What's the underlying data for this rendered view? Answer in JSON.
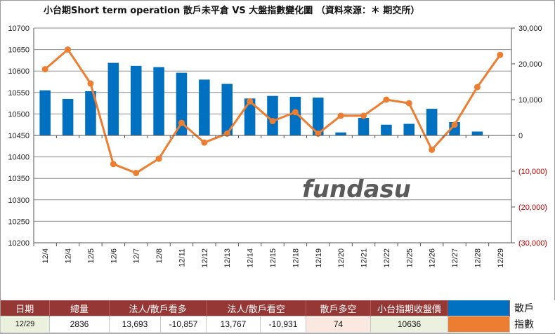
{
  "title": "小台期Short term operation  散戶未平倉 VS 大盤指數變化圖  （資料來源：＊ 期交所）",
  "watermark": "fundasu",
  "colors": {
    "bar": "#0070c0",
    "line": "#ed7d31",
    "negative_tick": "#c00000",
    "header_bg": "#953735"
  },
  "chart_data": {
    "type": "bar",
    "categories": [
      "12/4",
      "12/4",
      "12/5",
      "12/6",
      "12/7",
      "12/8",
      "12/11",
      "12/12",
      "12/13",
      "12/14",
      "12/15",
      "12/18",
      "12/19",
      "12/20",
      "12/21",
      "12/22",
      "12/25",
      "12/26",
      "12/27",
      "12/28",
      "12/29"
    ],
    "series": [
      {
        "name": "散戶",
        "type": "bar",
        "axis": "left",
        "values": [
          10555,
          10535,
          10553,
          10619,
          10612,
          10609,
          10596,
          10580,
          10570,
          10536,
          10542,
          10540,
          10538,
          10457,
          10491,
          10475,
          10477,
          10512,
          10481,
          10459,
          10449
        ]
      },
      {
        "name": "指數",
        "type": "line",
        "axis": "right",
        "values": [
          18500,
          24000,
          14500,
          -8000,
          -10500,
          -6500,
          3500,
          -2000,
          500,
          9500,
          4000,
          6500,
          500,
          5500,
          5500,
          10000,
          9000,
          -4000,
          3000,
          13500,
          22500
        ]
      }
    ],
    "left_axis": {
      "min": 10200,
      "max": 10700,
      "step": 50,
      "ticks": [
        "10700",
        "10650",
        "10600",
        "10550",
        "10500",
        "10450",
        "10400",
        "10350",
        "10300",
        "10250",
        "10200"
      ]
    },
    "right_axis": {
      "min": -30000,
      "max": 30000,
      "step": 10000,
      "ticks": [
        "30,000",
        "20,000",
        "10,000",
        "0",
        "(10,000)",
        "(20,000)",
        "(30,000)"
      ]
    },
    "grid": true,
    "legend": "bottom-right"
  },
  "summary": {
    "headers": [
      "日期",
      "總量",
      "法人/散戶看多",
      "法人/散戶看空",
      "散戶多空",
      "小台指期收盤價"
    ],
    "values": [
      "12/29",
      "2836",
      "13,693",
      "-10,857",
      "13,767",
      "-10,931",
      "74",
      "10636"
    ],
    "legend": [
      "散戶",
      "指數"
    ]
  }
}
